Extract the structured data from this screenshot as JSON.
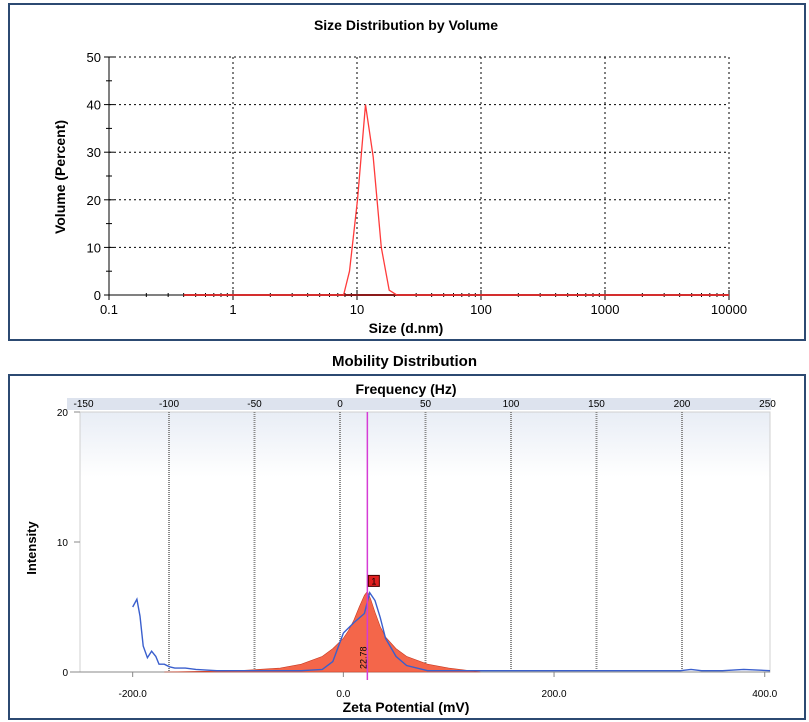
{
  "chart_data": [
    {
      "type": "line",
      "title": "Size Distribution by Volume",
      "xlabel": "Size (d.nm)",
      "ylabel": "Volume  (Percent)",
      "x_scale": "log",
      "xlim": [
        0.1,
        10000
      ],
      "ylim": [
        0,
        50
      ],
      "x_ticks": [
        "0.1",
        "1",
        "10",
        "100",
        "1000",
        "10000"
      ],
      "y_ticks": [
        "0",
        "10",
        "20",
        "30",
        "40",
        "50"
      ],
      "grid": true,
      "series": [
        {
          "color": "#ff3b3b",
          "x": [
            0.4,
            1,
            5,
            7.8,
            8.7,
            10.1,
            11.7,
            13.5,
            15.7,
            18.2,
            21,
            30,
            100,
            1000,
            10000
          ],
          "y": [
            0,
            0,
            0,
            0,
            5,
            20,
            40,
            29,
            10,
            1,
            0,
            0,
            0,
            0,
            0
          ]
        }
      ]
    },
    {
      "type": "area",
      "title": "Mobility Distribution",
      "secondary_axis_label": "Frequency (Hz)",
      "xlabel": "Zeta Potential (mV)",
      "ylabel": "Intensity",
      "xlim": [
        -250,
        405
      ],
      "ylim": [
        0,
        20
      ],
      "x_ticks": [
        "-200.0",
        "0.0",
        "200.0",
        "400.0"
      ],
      "y_ticks": [
        "0",
        "10",
        "20"
      ],
      "frequency_ticks": [
        "-150",
        "-100",
        "-50",
        "0",
        "50",
        "100",
        "150",
        "200",
        "250"
      ],
      "peak_marker": "1",
      "peak_value_label": "22.78",
      "series": [
        {
          "type": "area",
          "color": "#f4664a",
          "x": [
            -170,
            -100,
            -60,
            -40,
            -20,
            -10,
            0,
            5,
            10,
            15,
            20,
            22.78,
            26,
            30,
            35,
            40,
            50,
            60,
            80,
            100,
            120,
            130
          ],
          "y": [
            0,
            0.1,
            0.3,
            0.6,
            1.2,
            1.8,
            2.6,
            3.2,
            4.0,
            5.0,
            5.9,
            6.2,
            5.6,
            4.6,
            3.5,
            2.7,
            1.8,
            1.2,
            0.6,
            0.3,
            0.1,
            0
          ]
        },
        {
          "type": "line",
          "color": "#3a5fcd",
          "x": [
            -200,
            -196,
            -193,
            -190,
            -186,
            -182,
            -178,
            -175,
            -170,
            -165,
            -160,
            -150,
            -140,
            -120,
            -100,
            -60,
            -40,
            -20,
            -10,
            0,
            10,
            20,
            25,
            30,
            35,
            40,
            50,
            60,
            80,
            100,
            150,
            200,
            250,
            320,
            330,
            340,
            360,
            380,
            405
          ],
          "y": [
            5.0,
            5.6,
            4.3,
            2.0,
            1.1,
            1.6,
            1.2,
            0.6,
            0.6,
            0.4,
            0.3,
            0.3,
            0.2,
            0.1,
            0.1,
            0.1,
            0.1,
            0.2,
            0.8,
            3.0,
            3.8,
            4.5,
            6.1,
            5.5,
            4.2,
            2.6,
            1.2,
            0.5,
            0.1,
            0.1,
            0.1,
            0.1,
            0.1,
            0.1,
            0.2,
            0.1,
            0.1,
            0.2,
            0.1
          ]
        }
      ]
    }
  ]
}
